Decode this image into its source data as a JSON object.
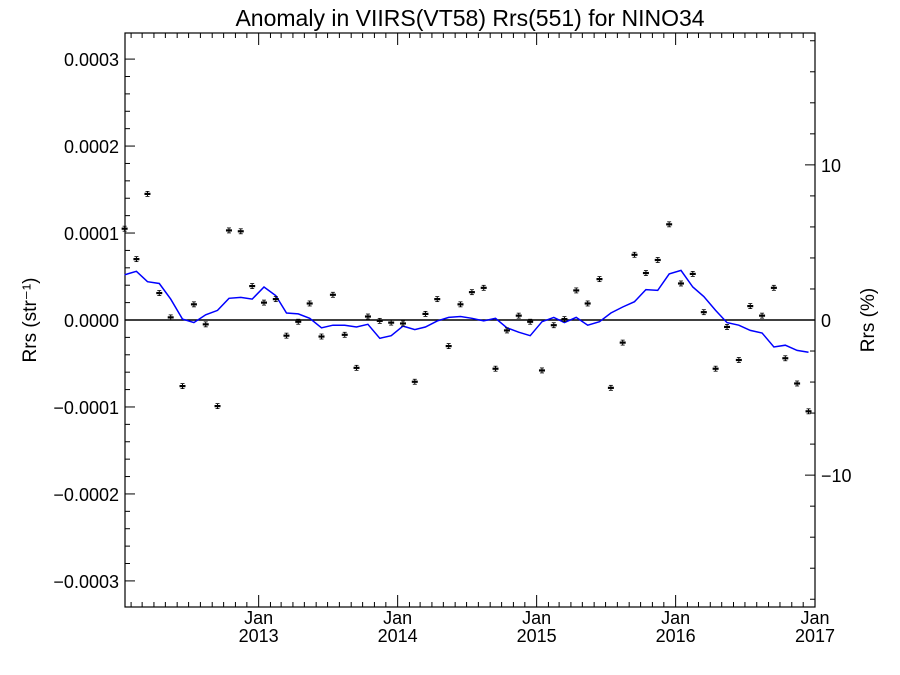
{
  "chart_data": {
    "type": "scatter",
    "title": "Anomaly in VIIRS(VT58) Rrs(551) for NINO34",
    "ylabel_left": "Rrs (str⁻¹)",
    "ylabel_right": "Rrs (%)",
    "xlim": [
      "2012-01-16",
      "2017-01-01"
    ],
    "ylim_left": [
      -0.00033,
      0.00033
    ],
    "ylim_right": [
      -18.5,
      18.5
    ],
    "x_ticks": [
      {
        "date": "2013-01-01",
        "month": "Jan",
        "year": "2013"
      },
      {
        "date": "2014-01-01",
        "month": "Jan",
        "year": "2014"
      },
      {
        "date": "2015-01-01",
        "month": "Jan",
        "year": "2015"
      },
      {
        "date": "2016-01-01",
        "month": "Jan",
        "year": "2016"
      },
      {
        "date": "2017-01-01",
        "month": "Jan",
        "year": "2017"
      }
    ],
    "y_ticks_left": [
      {
        "value": 0.0003,
        "label": "0.0003"
      },
      {
        "value": 0.0002,
        "label": "0.0002"
      },
      {
        "value": 0.0001,
        "label": "0.0001"
      },
      {
        "value": 0.0,
        "label": "0.0000"
      },
      {
        "value": -0.0001,
        "label": "−0.0001"
      },
      {
        "value": -0.0002,
        "label": "−0.0002"
      },
      {
        "value": -0.0003,
        "label": "−0.0003"
      }
    ],
    "y_ticks_right": [
      {
        "value": 10,
        "label": "10"
      },
      {
        "value": 0,
        "label": "0"
      },
      {
        "value": -10,
        "label": "−10"
      }
    ],
    "reference_line": 0,
    "series": [
      {
        "kind": "points_with_errorbars",
        "color": "#000000",
        "x": [
          "2012-01-15",
          "2012-02-15",
          "2012-03-15",
          "2012-04-15",
          "2012-05-15",
          "2012-06-15",
          "2012-07-15",
          "2012-08-15",
          "2012-09-15",
          "2012-10-15",
          "2012-11-15",
          "2012-12-15",
          "2013-01-15",
          "2013-02-15",
          "2013-03-15",
          "2013-04-15",
          "2013-05-15",
          "2013-06-15",
          "2013-07-15",
          "2013-08-15",
          "2013-09-15",
          "2013-10-15",
          "2013-11-15",
          "2013-12-15",
          "2014-01-15",
          "2014-02-15",
          "2014-03-15",
          "2014-04-15",
          "2014-05-15",
          "2014-06-15",
          "2014-07-15",
          "2014-08-15",
          "2014-09-15",
          "2014-10-15",
          "2014-11-15",
          "2014-12-15",
          "2015-01-15",
          "2015-02-15",
          "2015-03-15",
          "2015-04-15",
          "2015-05-15",
          "2015-06-15",
          "2015-07-15",
          "2015-08-15",
          "2015-09-15",
          "2015-10-15",
          "2015-11-15",
          "2015-12-15",
          "2016-01-15",
          "2016-02-15",
          "2016-03-15",
          "2016-04-15",
          "2016-05-15",
          "2016-06-15",
          "2016-07-15",
          "2016-08-15",
          "2016-09-15",
          "2016-10-15",
          "2016-11-15",
          "2016-12-15"
        ],
        "y": [
          0.000105,
          7e-05,
          0.000145,
          3.1e-05,
          3e-06,
          -7.6e-05,
          1.8e-05,
          -5e-06,
          -9.9e-05,
          0.000103,
          0.000102,
          3.9e-05,
          2e-05,
          2.4e-05,
          -1.8e-05,
          -2e-06,
          1.9e-05,
          -1.9e-05,
          2.9e-05,
          -1.7e-05,
          -5.5e-05,
          4e-06,
          -1e-06,
          -3e-06,
          -4e-06,
          -7.1e-05,
          7e-06,
          2.4e-05,
          -3e-05,
          1.8e-05,
          3.2e-05,
          3.7e-05,
          -5.6e-05,
          -1.2e-05,
          5e-06,
          -2e-06,
          -5.8e-05,
          -6e-06,
          1e-06,
          3.4e-05,
          1.9e-05,
          4.7e-05,
          -7.8e-05,
          -2.6e-05,
          7.5e-05,
          5.4e-05,
          6.9e-05,
          0.00011,
          4.2e-05,
          5.3e-05,
          9e-06,
          -5.6e-05,
          -8e-06,
          -4.6e-05,
          1.6e-05,
          5e-06,
          3.7e-05,
          -4.4e-05,
          -7.3e-05,
          -0.000105
        ]
      },
      {
        "kind": "line",
        "color": "#0000ff",
        "x": [
          "2012-01-15",
          "2012-02-15",
          "2012-03-15",
          "2012-04-15",
          "2012-05-15",
          "2012-06-15",
          "2012-07-15",
          "2012-08-15",
          "2012-09-15",
          "2012-10-15",
          "2012-11-15",
          "2012-12-15",
          "2013-01-15",
          "2013-02-15",
          "2013-03-15",
          "2013-04-15",
          "2013-05-15",
          "2013-06-15",
          "2013-07-15",
          "2013-08-15",
          "2013-09-15",
          "2013-10-15",
          "2013-11-15",
          "2013-12-15",
          "2014-01-15",
          "2014-02-15",
          "2014-03-15",
          "2014-04-15",
          "2014-05-15",
          "2014-06-15",
          "2014-07-15",
          "2014-08-15",
          "2014-09-15",
          "2014-10-15",
          "2014-11-15",
          "2014-12-15",
          "2015-01-15",
          "2015-02-15",
          "2015-03-15",
          "2015-04-15",
          "2015-05-15",
          "2015-06-15",
          "2015-07-15",
          "2015-08-15",
          "2015-09-15",
          "2015-10-15",
          "2015-11-15",
          "2015-12-15",
          "2016-01-15",
          "2016-02-15",
          "2016-03-15",
          "2016-04-15",
          "2016-05-15",
          "2016-06-15",
          "2016-07-15",
          "2016-08-15",
          "2016-09-15",
          "2016-10-15",
          "2016-11-15",
          "2016-12-15"
        ],
        "y": [
          5.2e-05,
          5.6e-05,
          4.4e-05,
          4.2e-05,
          2.4e-05,
          1e-06,
          -3e-06,
          6e-06,
          1.1e-05,
          2.5e-05,
          2.6e-05,
          2.4e-05,
          3.8e-05,
          2.8e-05,
          8e-06,
          7e-06,
          2e-06,
          -9e-06,
          -6e-06,
          -6e-06,
          -8e-06,
          -5e-06,
          -2.1e-05,
          -1.8e-05,
          -7e-06,
          -1.1e-05,
          -8e-06,
          -1e-06,
          3e-06,
          4e-06,
          2e-06,
          -1e-06,
          2e-06,
          -9e-06,
          -1.4e-05,
          -1.8e-05,
          -2e-06,
          3e-06,
          -3e-06,
          3e-06,
          -6e-06,
          -2e-06,
          8e-06,
          1.5e-05,
          2.1e-05,
          3.5e-05,
          3.4e-05,
          5.3e-05,
          5.7e-05,
          3.8e-05,
          2.7e-05,
          1.1e-05,
          -3e-06,
          -6e-06,
          -1.2e-05,
          -1.5e-05,
          -3.1e-05,
          -2.9e-05,
          -3.5e-05,
          -3.7e-05
        ]
      }
    ]
  }
}
